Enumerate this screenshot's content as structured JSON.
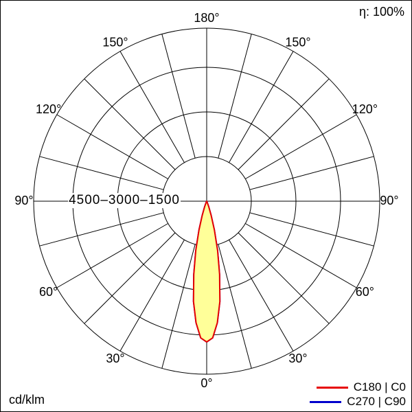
{
  "chart_data": {
    "type": "polar",
    "units": "cd/klm",
    "efficiency": "η: 100%",
    "angle_ticks_deg": [
      0,
      30,
      60,
      90,
      120,
      150,
      180
    ],
    "angle_tick_labels": [
      "0°",
      "30°",
      "60°",
      "90°",
      "120°",
      "150°",
      "180°"
    ],
    "spoke_step_deg": 15,
    "radial_ticks": [
      1500,
      3000,
      4500
    ],
    "radial_axis_text": "4500–3000–1500",
    "radial_max": 5800,
    "grid": true,
    "legend_position": "bottom-right",
    "gamma_deg": [
      0,
      2.5,
      5,
      7.5,
      10,
      12.5,
      15,
      17.5,
      20,
      22.5,
      25,
      27.5,
      30,
      45,
      60,
      75,
      90
    ],
    "series": [
      {
        "name": "C180 | C0",
        "color": "#e60000",
        "fill": "#ffff99",
        "values": [
          4730,
          4600,
          4100,
          3400,
          2500,
          1700,
          1000,
          500,
          200,
          60,
          15,
          0,
          0,
          0,
          0,
          0,
          0
        ]
      },
      {
        "name": "C270 | C90",
        "color": "#0000cc",
        "fill": "none",
        "values": [
          4730,
          4600,
          4100,
          3400,
          2500,
          1700,
          1000,
          500,
          200,
          60,
          15,
          0,
          0,
          0,
          0,
          0,
          0
        ]
      }
    ]
  }
}
